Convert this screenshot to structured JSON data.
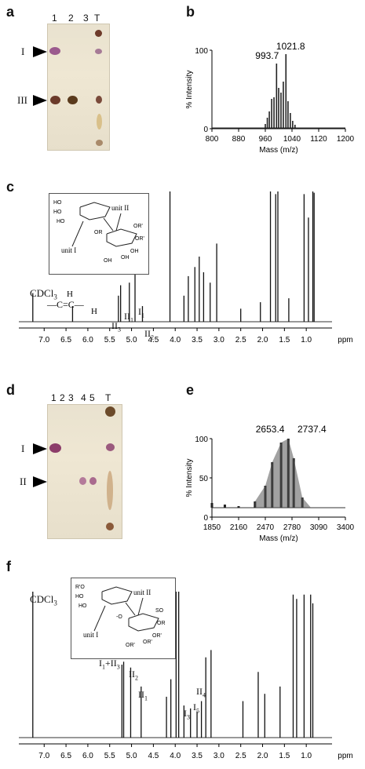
{
  "panels": {
    "a": {
      "letter": "a",
      "lanes": [
        "1",
        "2",
        "3",
        "T"
      ],
      "markers": [
        "I",
        "III"
      ]
    },
    "b": {
      "letter": "b",
      "peak_labels": [
        "993.7",
        "1021.8"
      ]
    },
    "c": {
      "letter": "c",
      "solvent": "CDCl",
      "solvent_sub": "3",
      "struct_labels": [
        "unit I",
        "unit II"
      ],
      "peak_annots": [
        {
          "main": "II",
          "sub": "3"
        },
        {
          "main": "II",
          "sub": "1"
        },
        {
          "main": "I",
          "sub": "1"
        },
        {
          "main": "II",
          "sub": "2"
        }
      ],
      "struct_groups": [
        "HO",
        "HO",
        "HO",
        "OR",
        "OR'",
        "OR'",
        "OH",
        "OH",
        "OH"
      ]
    },
    "d": {
      "letter": "d",
      "lanes": [
        "1",
        "2",
        "3",
        "4",
        "5",
        "T"
      ],
      "markers": [
        "I",
        "II"
      ]
    },
    "e": {
      "letter": "e",
      "peak_labels": [
        "2653.4",
        "2737.4"
      ]
    },
    "f": {
      "letter": "f",
      "solvent": "CDCl",
      "solvent_sub": "3",
      "struct_labels": [
        "unit I",
        "unit II"
      ],
      "struct_groups": [
        "R'O",
        "HO",
        "HO",
        "-O",
        "SO",
        "OR",
        "OR'",
        "OR'",
        "OR'"
      ],
      "peak_annots": [
        {
          "main": "I",
          "sub": "1",
          "plus": "+II",
          "sub2": "3"
        },
        {
          "main": "II",
          "sub": "2"
        },
        {
          "main": "II",
          "sub": "1"
        },
        {
          "main": "I",
          "sub": "3"
        },
        {
          "main": "I",
          "sub": "5"
        },
        {
          "main": "II",
          "sub": "4"
        }
      ]
    }
  },
  "chart_data": [
    {
      "type": "line",
      "panel": "b",
      "xlabel": "Mass (m/z)",
      "ylabel": "% Intensity",
      "xlim": [
        800,
        1200
      ],
      "ylim": [
        0,
        100
      ],
      "xticks": [
        "800",
        "880",
        "960",
        "1040",
        "1120",
        "1200"
      ],
      "yticks": [
        "0",
        "100"
      ],
      "x": [
        960,
        966,
        972,
        979,
        986,
        993.7,
        1000,
        1007,
        1014,
        1021.8,
        1028,
        1035,
        1042,
        1049
      ],
      "y": [
        6,
        14,
        22,
        38,
        40,
        83,
        52,
        46,
        60,
        95,
        35,
        20,
        10,
        5
      ]
    },
    {
      "type": "line",
      "panel": "c",
      "xlabel": "ppm",
      "xlim": [
        7.4,
        0.5
      ],
      "xticks": [
        "7.0",
        "6.5",
        "6.0",
        "5.5",
        "5.0",
        "4.5",
        "4.0",
        "3.5",
        "3.0",
        "2.5",
        "2.0",
        "1.5",
        "1.0"
      ],
      "x": [
        7.26,
        6.35,
        5.3,
        5.25,
        5.05,
        4.92,
        4.75,
        4.12,
        3.8,
        3.7,
        3.55,
        3.45,
        3.35,
        3.2,
        3.05,
        2.5,
        2.05,
        1.82,
        1.7,
        1.65,
        1.4,
        1.05,
        0.95,
        0.85,
        0.82
      ],
      "y": [
        22,
        12,
        20,
        28,
        30,
        38,
        12,
        100,
        20,
        35,
        42,
        50,
        38,
        30,
        60,
        10,
        15,
        100,
        98,
        100,
        18,
        98,
        80,
        100,
        99
      ]
    },
    {
      "type": "line",
      "panel": "e",
      "xlabel": "Mass (m/z)",
      "ylabel": "% Intensity",
      "xlim": [
        1850,
        3400
      ],
      "ylim": [
        0,
        100
      ],
      "xticks": [
        "1850",
        "2160",
        "2470",
        "2780",
        "3090",
        "3400"
      ],
      "yticks": [
        "0",
        "50",
        "100"
      ],
      "x": [
        1850,
        2000,
        2160,
        2350,
        2470,
        2550,
        2653.4,
        2737.4,
        2800,
        2900,
        3000,
        3400
      ],
      "y": [
        18,
        16,
        14,
        20,
        40,
        70,
        95,
        100,
        75,
        25,
        12,
        12
      ]
    },
    {
      "type": "line",
      "panel": "f",
      "xlabel": "ppm",
      "xlim": [
        7.4,
        0.5
      ],
      "xticks": [
        "7.0",
        "6.5",
        "6.0",
        "5.5",
        "5.0",
        "4.5",
        "4.0",
        "3.5",
        "3.0",
        "2.5",
        "2.0",
        "1.5",
        "1.0"
      ],
      "x": [
        7.26,
        5.22,
        5.18,
        5.02,
        4.78,
        4.2,
        4.1,
        3.98,
        3.92,
        3.8,
        3.65,
        3.5,
        3.4,
        3.3,
        3.18,
        2.45,
        2.1,
        1.95,
        1.6,
        1.3,
        1.22,
        1.05,
        0.9,
        0.85
      ],
      "y": [
        100,
        50,
        52,
        48,
        35,
        28,
        40,
        100,
        100,
        22,
        20,
        18,
        25,
        55,
        60,
        25,
        45,
        30,
        35,
        98,
        95,
        98,
        98,
        92
      ]
    }
  ]
}
